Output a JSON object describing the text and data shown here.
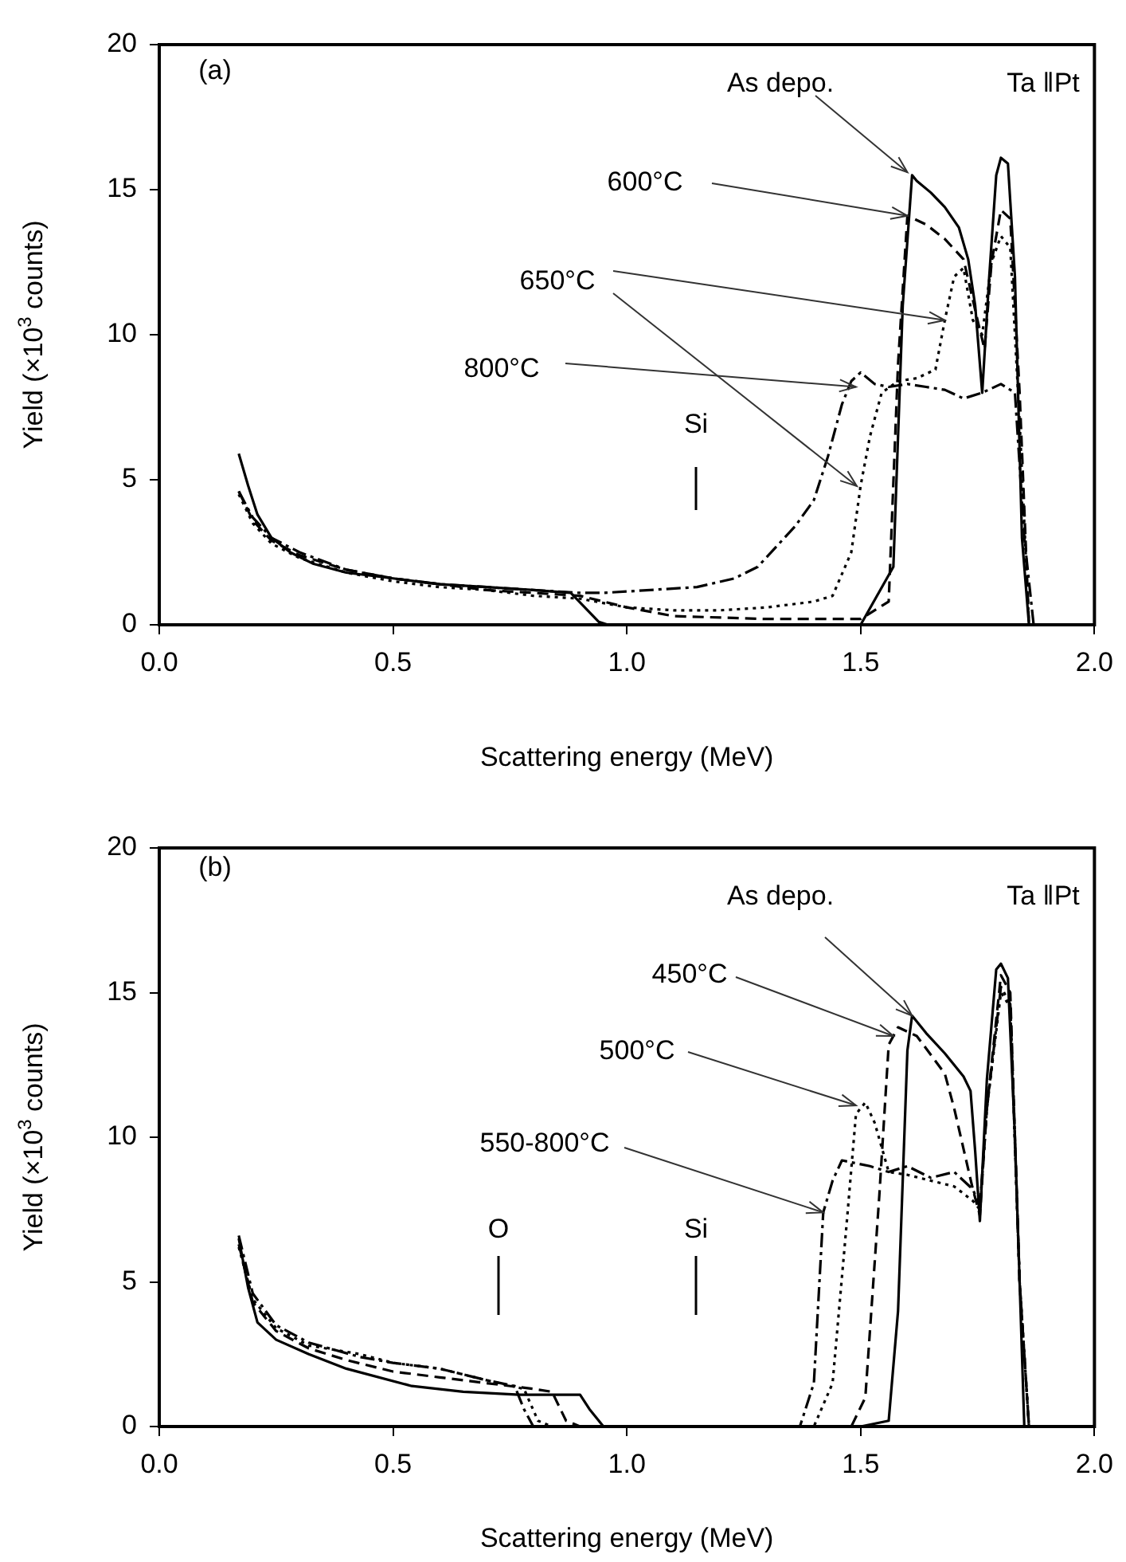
{
  "chart_data": [
    {
      "type": "line",
      "xlabel": "Scattering energy (MeV)",
      "ylabel": "Yield (×10$^{3}$ counts)",
      "xlim": [
        0,
        2
      ],
      "ylim": [
        0,
        20
      ],
      "xticks": [
        {
          "value": 0,
          "label": "0.0"
        },
        {
          "value": 0.5,
          "label": "0.5"
        },
        {
          "value": 1,
          "label": "1.0"
        },
        {
          "value": 1.5,
          "label": "1.5"
        },
        {
          "value": 2,
          "label": "2.0"
        }
      ],
      "yticks": [
        0,
        5,
        10,
        15,
        20
      ],
      "grid": false,
      "legend": false,
      "marker": "none",
      "series": [
        {
          "color": "#000000",
          "line_style": "solid",
          "x": [
            0.17,
            0.19,
            0.21,
            0.24,
            0.28,
            0.33,
            0.4,
            0.5,
            0.6,
            0.7,
            0.8,
            0.88,
            0.91,
            0.94,
            0.96,
            1.2,
            1.5,
            1.57,
            1.59,
            1.61,
            1.62,
            1.65,
            1.68,
            1.71,
            1.73,
            1.745,
            1.76,
            1.775,
            1.79,
            1.8,
            1.815,
            1.83,
            1.845,
            1.86,
            2.0
          ],
          "values": [
            5.9,
            4.8,
            3.8,
            3.0,
            2.5,
            2.1,
            1.8,
            1.6,
            1.4,
            1.3,
            1.2,
            1.1,
            0.6,
            0.1,
            0,
            0,
            0,
            2,
            11,
            15.5,
            15.3,
            14.9,
            14.4,
            13.7,
            12.6,
            11,
            8,
            12,
            15.5,
            16.1,
            15.9,
            12,
            3,
            0,
            0
          ]
        },
        {
          "color": "#000000",
          "line_style": "dashed",
          "x": [
            0.17,
            0.2,
            0.24,
            0.3,
            0.4,
            0.5,
            0.6,
            0.7,
            0.8,
            0.9,
            1.0,
            1.1,
            1.3,
            1.5,
            1.56,
            1.58,
            1.6,
            1.64,
            1.68,
            1.72,
            1.75,
            1.765,
            1.78,
            1.8,
            1.82,
            1.84,
            1.86,
            2.0
          ],
          "values": [
            4.6,
            3.6,
            2.9,
            2.4,
            1.9,
            1.6,
            1.4,
            1.2,
            1.1,
            1.0,
            0.6,
            0.3,
            0.2,
            0.2,
            0.8,
            9,
            14.1,
            13.8,
            13.3,
            12.6,
            10.5,
            9.5,
            12.5,
            14.3,
            14,
            8,
            0,
            0
          ]
        },
        {
          "color": "#000000",
          "line_style": "dotted",
          "x": [
            0.17,
            0.2,
            0.24,
            0.3,
            0.4,
            0.5,
            0.6,
            0.7,
            0.8,
            0.9,
            1.0,
            1.1,
            1.2,
            1.3,
            1.4,
            1.44,
            1.48,
            1.5,
            1.52,
            1.545,
            1.58,
            1.62,
            1.66,
            1.68,
            1.7,
            1.72,
            1.74,
            1.76,
            1.78,
            1.8,
            1.82,
            1.84,
            1.86,
            2.0
          ],
          "values": [
            4.5,
            3.5,
            2.8,
            2.3,
            1.8,
            1.5,
            1.3,
            1.2,
            1.0,
            0.9,
            0.6,
            0.5,
            0.5,
            0.6,
            0.8,
            1.0,
            2.5,
            4.8,
            6.5,
            8.0,
            8.4,
            8.5,
            8.8,
            10.5,
            12.0,
            12.3,
            10.5,
            10,
            12.5,
            13.4,
            13,
            7,
            0,
            0
          ]
        },
        {
          "color": "#000000",
          "line_style": "dashdot",
          "x": [
            0.17,
            0.2,
            0.24,
            0.3,
            0.4,
            0.5,
            0.6,
            0.7,
            0.8,
            0.9,
            0.95,
            1.05,
            1.15,
            1.23,
            1.28,
            1.32,
            1.36,
            1.4,
            1.43,
            1.46,
            1.48,
            1.5,
            1.53,
            1.56,
            1.6,
            1.64,
            1.68,
            1.72,
            1.76,
            1.8,
            1.83,
            1.85,
            1.87,
            2.0
          ],
          "values": [
            4.6,
            3.7,
            3.0,
            2.5,
            1.9,
            1.6,
            1.4,
            1.3,
            1.2,
            1.1,
            1.1,
            1.2,
            1.3,
            1.6,
            2.0,
            2.7,
            3.4,
            4.3,
            5.8,
            7.6,
            8.4,
            8.7,
            8.3,
            8.2,
            8.3,
            8.2,
            8.1,
            7.8,
            8.0,
            8.3,
            8.0,
            3,
            0,
            0
          ]
        }
      ],
      "annotations": [
        "(a)",
        "Ta ‖Pt",
        {
          "text": "As depo.",
          "x": 1.6,
          "y": 15.6
        },
        {
          "text": "600°C",
          "x": 1.6,
          "y": 14.1
        },
        {
          "text": "650°C",
          "x": 1.68,
          "y": 10.5
        },
        {
          "text": "800°C",
          "x": 1.49,
          "y": 8.2
        },
        "Si"
      ]
    },
    {
      "type": "line",
      "xlabel": "Scattering energy (MeV)",
      "ylabel": "Yield (×10$^{3}$ counts)",
      "xlim": [
        0,
        2
      ],
      "ylim": [
        0,
        20
      ],
      "xticks": [
        {
          "value": 0,
          "label": "0.0"
        },
        {
          "value": 0.5,
          "label": "0.5"
        },
        {
          "value": 1,
          "label": "1.0"
        },
        {
          "value": 1.5,
          "label": "1.5"
        },
        {
          "value": 2,
          "label": "2.0"
        }
      ],
      "yticks": [
        0,
        5,
        10,
        15,
        20
      ],
      "grid": false,
      "legend": false,
      "marker": "none",
      "series": [
        {
          "color": "#000000",
          "line_style": "solid",
          "x": [
            0.17,
            0.19,
            0.21,
            0.25,
            0.32,
            0.4,
            0.54,
            0.65,
            0.77,
            0.9,
            0.92,
            0.95,
            1.2,
            1.5,
            1.56,
            1.58,
            1.6,
            1.61,
            1.64,
            1.68,
            1.72,
            1.735,
            1.745,
            1.755,
            1.77,
            1.79,
            1.8,
            1.815,
            1.83,
            1.85,
            2.0
          ],
          "values": [
            6.5,
            4.8,
            3.6,
            3.0,
            2.5,
            2.0,
            1.4,
            1.2,
            1.1,
            1.1,
            0.6,
            0,
            0,
            0,
            0.2,
            4,
            13,
            14.2,
            13.6,
            12.9,
            12.1,
            11.6,
            9.5,
            7.1,
            12,
            15.8,
            16.0,
            15.5,
            10,
            0,
            0
          ]
        },
        {
          "color": "#000000",
          "line_style": "dashed",
          "x": [
            0.17,
            0.2,
            0.25,
            0.32,
            0.4,
            0.5,
            0.6,
            0.7,
            0.8,
            0.84,
            0.87,
            0.9,
            1.2,
            1.48,
            1.51,
            1.54,
            1.56,
            1.58,
            1.62,
            1.68,
            1.7,
            1.72,
            1.74,
            1.755,
            1.77,
            1.8,
            1.82,
            1.84,
            1.86,
            2.0
          ],
          "values": [
            6.3,
            4.3,
            3.3,
            2.7,
            2.3,
            1.9,
            1.7,
            1.5,
            1.3,
            1.2,
            0.2,
            0,
            0,
            0,
            1,
            8,
            13.2,
            13.8,
            13.5,
            12.2,
            11,
            9.6,
            8.2,
            7.3,
            11,
            15.6,
            15,
            5,
            0,
            0
          ]
        },
        {
          "color": "#000000",
          "line_style": "dotted",
          "x": [
            0.17,
            0.2,
            0.25,
            0.32,
            0.43,
            0.5,
            0.6,
            0.65,
            0.7,
            0.78,
            0.81,
            0.84,
            1.2,
            1.4,
            1.44,
            1.47,
            1.49,
            1.51,
            1.53,
            1.56,
            1.6,
            1.65,
            1.7,
            1.74,
            1.755,
            1.77,
            1.8,
            1.82,
            1.84,
            1.86,
            2.0
          ],
          "values": [
            6.2,
            4.4,
            3.4,
            2.8,
            2.5,
            2.2,
            2.0,
            1.8,
            1.6,
            1.3,
            0.2,
            0,
            0,
            0,
            1.5,
            7,
            10.8,
            11.2,
            10.5,
            8.8,
            8.7,
            8.5,
            8.3,
            7.8,
            7.5,
            11,
            15,
            14.5,
            5,
            0,
            0
          ]
        },
        {
          "color": "#000000",
          "line_style": "dashdot",
          "x": [
            0.17,
            0.2,
            0.25,
            0.32,
            0.43,
            0.5,
            0.6,
            0.65,
            0.7,
            0.76,
            0.78,
            0.8,
            1.2,
            1.37,
            1.4,
            1.42,
            1.44,
            1.46,
            1.52,
            1.56,
            1.6,
            1.65,
            1.7,
            1.74,
            1.755,
            1.77,
            1.8,
            1.82,
            1.84,
            1.86,
            2.0
          ],
          "values": [
            6.6,
            4.6,
            3.5,
            2.9,
            2.4,
            2.2,
            2.0,
            1.8,
            1.6,
            1.4,
            0.6,
            0,
            0,
            0,
            1.5,
            7.4,
            8.5,
            9.2,
            9.0,
            8.8,
            9.0,
            8.6,
            8.8,
            8.2,
            7.6,
            11,
            15.2,
            14.6,
            5,
            0,
            0
          ]
        }
      ],
      "annotations": [
        "(b)",
        "Ta ‖Pt",
        {
          "text": "As depo.",
          "x": 1.61,
          "y": 14.2
        },
        {
          "text": "450°C",
          "x": 1.57,
          "y": 13.5
        },
        {
          "text": "500°C",
          "x": 1.49,
          "y": 11.1
        },
        {
          "text": "550-800°C",
          "x": 1.42,
          "y": 7.4
        },
        "O",
        "Si"
      ]
    }
  ]
}
